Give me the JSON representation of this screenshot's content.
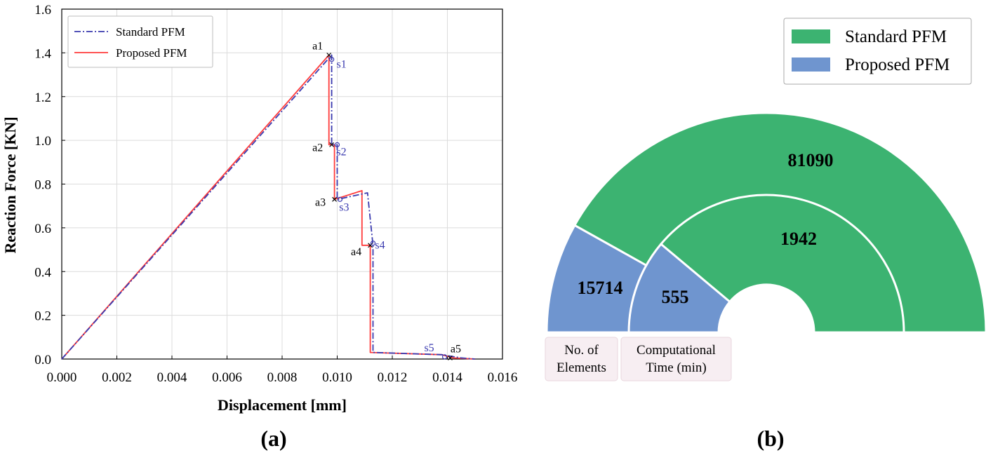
{
  "colors": {
    "standard_line": "#3a3aaf",
    "proposed_line": "#ff3b3b",
    "standard_ring": "#3cb371",
    "proposed_ring": "#6f95cf",
    "category_box": "#f7eef2"
  },
  "panels": {
    "a": "(a)",
    "b": "(b)"
  },
  "chart_data": [
    {
      "type": "line",
      "xlabel": "Displacement [mm]",
      "ylabel": "Reaction Force [KN]",
      "xlim": [
        0,
        0.016
      ],
      "ylim": [
        0,
        1.6
      ],
      "xticks": [
        "0.000",
        "0.002",
        "0.004",
        "0.006",
        "0.008",
        "0.010",
        "0.012",
        "0.014",
        "0.016"
      ],
      "yticks": [
        "0.0",
        "0.2",
        "0.4",
        "0.6",
        "0.8",
        "1.0",
        "1.2",
        "1.4",
        "1.6"
      ],
      "legend_position": "top-left",
      "series": [
        {
          "name": "Standard PFM",
          "style": "dash-dot",
          "x": [
            0,
            0.0098,
            0.0098,
            0.01,
            0.01,
            0.0111,
            0.0113,
            0.0113,
            0.0138,
            0.0145,
            0.015
          ],
          "y": [
            0,
            1.39,
            0.98,
            0.98,
            0.73,
            0.76,
            0.52,
            0.03,
            0.02,
            0.005,
            0
          ]
        },
        {
          "name": "Proposed PFM",
          "style": "solid",
          "x": [
            0,
            0.0097,
            0.0097,
            0.0099,
            0.0099,
            0.0109,
            0.0109,
            0.0112,
            0.0112,
            0.0138,
            0.0142,
            0.015
          ],
          "y": [
            0,
            1.39,
            0.98,
            0.98,
            0.73,
            0.77,
            0.52,
            0.52,
            0.03,
            0.02,
            0.005,
            0
          ]
        }
      ],
      "annotations": [
        {
          "label": "a1",
          "series": "Proposed PFM",
          "x": 0.0097,
          "y": 1.39
        },
        {
          "label": "a2",
          "series": "Proposed PFM",
          "x": 0.0098,
          "y": 0.98
        },
        {
          "label": "a3",
          "series": "Proposed PFM",
          "x": 0.0099,
          "y": 0.73
        },
        {
          "label": "a4",
          "series": "Proposed PFM",
          "x": 0.0112,
          "y": 0.52
        },
        {
          "label": "a5",
          "series": "Proposed PFM",
          "x": 0.0141,
          "y": 0.005
        },
        {
          "label": "s1",
          "series": "Standard PFM",
          "x": 0.0098,
          "y": 1.37
        },
        {
          "label": "s2",
          "series": "Standard PFM",
          "x": 0.01,
          "y": 0.98
        },
        {
          "label": "s3",
          "series": "Standard PFM",
          "x": 0.0101,
          "y": 0.73
        },
        {
          "label": "s4",
          "series": "Standard PFM",
          "x": 0.0113,
          "y": 0.53
        },
        {
          "label": "s5",
          "series": "Standard PFM",
          "x": 0.0139,
          "y": 0.01
        }
      ]
    },
    {
      "type": "pie",
      "variant": "nested-semicircle",
      "legend_position": "top-right",
      "legend": [
        "Standard PFM",
        "Proposed PFM"
      ],
      "rings": [
        {
          "category": "No. of Elements",
          "values": {
            "Standard PFM": 81090,
            "Proposed PFM": 15714
          }
        },
        {
          "category": "Computational Time (min)",
          "values": {
            "Standard PFM": 1942,
            "Proposed PFM": 555
          }
        }
      ],
      "category_labels": [
        [
          "No. of",
          "Elements"
        ],
        [
          "Computational",
          "Time (min)"
        ]
      ]
    }
  ]
}
